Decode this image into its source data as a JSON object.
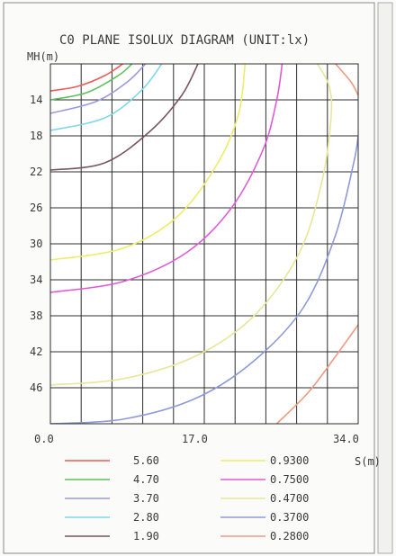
{
  "chart_data": {
    "type": "line",
    "title": "C0 PLANE ISOLUX DIAGRAM (UNIT:lx)",
    "xlabel": "S(m)",
    "ylabel": "MH(m)",
    "xlim": [
      0,
      34
    ],
    "ylim": [
      50,
      10
    ],
    "x_tick_labels": [
      "0.0",
      "17.0",
      "34.0"
    ],
    "y_tick_labels": [
      "14",
      "18",
      "22",
      "26",
      "30",
      "34",
      "38",
      "42",
      "46"
    ],
    "grid": true,
    "legend_position": "bottom",
    "legend_columns": [
      [
        "5.60",
        "4.70",
        "3.70",
        "2.80",
        "1.90"
      ],
      [
        "0.9300",
        "0.7500",
        "0.4700",
        "0.3700",
        "0.2800"
      ]
    ],
    "series": [
      {
        "name": "5.60",
        "color": "#ef5a5a",
        "points": [
          [
            0,
            13.0
          ],
          [
            3.0,
            12.5
          ],
          [
            6.0,
            11.3
          ],
          [
            8.0,
            10.0
          ]
        ]
      },
      {
        "name": "4.70",
        "color": "#5cc25c",
        "points": [
          [
            0,
            14.0
          ],
          [
            4.0,
            13.2
          ],
          [
            7.5,
            11.3
          ],
          [
            9.0,
            10.0
          ]
        ]
      },
      {
        "name": "3.70",
        "color": "#9a9ae0",
        "points": [
          [
            0,
            15.5
          ],
          [
            5.0,
            14.2
          ],
          [
            8.5,
            12.0
          ],
          [
            10.5,
            10.0
          ]
        ]
      },
      {
        "name": "2.80",
        "color": "#7fd8e8",
        "points": [
          [
            0,
            17.4
          ],
          [
            6.0,
            16.0
          ],
          [
            10.0,
            13.0
          ],
          [
            12.3,
            10.0
          ]
        ]
      },
      {
        "name": "1.90",
        "color": "#7a5560",
        "points": [
          [
            0,
            21.8
          ],
          [
            6.0,
            21.0
          ],
          [
            11.0,
            17.5
          ],
          [
            14.5,
            13.5
          ],
          [
            16.3,
            10.0
          ]
        ]
      },
      {
        "name": "0.9300",
        "color": "#eded6a",
        "points": [
          [
            0,
            31.8
          ],
          [
            8.0,
            30.5
          ],
          [
            14.0,
            27.0
          ],
          [
            18.5,
            21.0
          ],
          [
            20.8,
            15.5
          ],
          [
            21.5,
            10.0
          ]
        ]
      },
      {
        "name": "0.7500",
        "color": "#e05ad8",
        "points": [
          [
            0,
            35.4
          ],
          [
            8.0,
            34.2
          ],
          [
            15.0,
            31.0
          ],
          [
            20.0,
            26.0
          ],
          [
            23.5,
            19.5
          ],
          [
            25.0,
            14.0
          ],
          [
            25.6,
            10.0
          ]
        ]
      },
      {
        "name": "0.4700",
        "color": "#e7e79a",
        "points": [
          [
            0,
            45.7
          ],
          [
            8.0,
            45.0
          ],
          [
            16.0,
            42.5
          ],
          [
            22.5,
            38.0
          ],
          [
            27.5,
            31.0
          ],
          [
            30.0,
            23.0
          ],
          [
            31.0,
            16.0
          ],
          [
            30.8,
            12.5
          ],
          [
            29.5,
            10.0
          ]
        ]
      },
      {
        "name": "0.3700",
        "color": "#8e9ad8",
        "points": [
          [
            0,
            50.0
          ],
          [
            8.0,
            49.5
          ],
          [
            16.0,
            47.2
          ],
          [
            22.5,
            43.0
          ],
          [
            28.0,
            37.0
          ],
          [
            31.5,
            29.0
          ],
          [
            33.5,
            21.0
          ],
          [
            34.0,
            18.0
          ]
        ]
      },
      {
        "name": "0.2800",
        "color": "#f09a82",
        "points": [
          [
            25.0,
            50.0
          ],
          [
            28.5,
            46.5
          ],
          [
            31.5,
            42.5
          ],
          [
            34.0,
            39.0
          ]
        ]
      },
      {
        "name": "0.2800",
        "color": "#f09a82",
        "points": [
          [
            31.5,
            10.0
          ],
          [
            33.2,
            12.0
          ],
          [
            34.0,
            13.5
          ]
        ]
      }
    ]
  }
}
